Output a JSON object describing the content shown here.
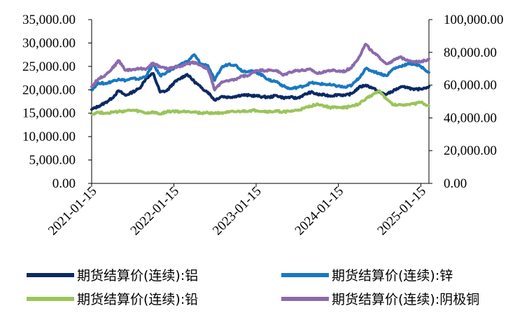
{
  "chart_data": {
    "type": "line",
    "x_axis": {
      "type": "date",
      "range": [
        "2021-01-15",
        "2025-02-20"
      ],
      "tick_labels": [
        "2021-01-15",
        "2022-01-15",
        "2023-01-15",
        "2024-01-15",
        "2025-01-15"
      ],
      "tick_label_rotation": "-45deg"
    },
    "y_left": {
      "range": [
        0,
        35000
      ],
      "tick_labels": [
        "0.00",
        "5,000.00",
        "10,000.00",
        "15,000.00",
        "20,000.00",
        "25,000.00",
        "30,000.00",
        "35,000.00"
      ]
    },
    "y_right": {
      "range": [
        0,
        100000
      ],
      "tick_labels": [
        "0.00",
        "20,000.00",
        "40,000.00",
        "60,000.00",
        "80,000.00",
        "100,000.00"
      ]
    },
    "grid": false,
    "legend_placement": "bottom",
    "series": [
      {
        "name": "期货结算价(连续):铝",
        "axis": "left",
        "color": "#0b2a63",
        "points": [
          [
            "2021-01-15",
            15800
          ],
          [
            "2021-02-15",
            16500
          ],
          [
            "2021-03-15",
            17200
          ],
          [
            "2021-04-15",
            18200
          ],
          [
            "2021-05-15",
            19800
          ],
          [
            "2021-06-15",
            18800
          ],
          [
            "2021-07-15",
            19500
          ],
          [
            "2021-08-15",
            20300
          ],
          [
            "2021-09-15",
            22500
          ],
          [
            "2021-10-15",
            23500
          ],
          [
            "2021-11-15",
            19500
          ],
          [
            "2021-12-15",
            19800
          ],
          [
            "2022-01-15",
            21500
          ],
          [
            "2022-02-15",
            22500
          ],
          [
            "2022-03-15",
            23300
          ],
          [
            "2022-04-15",
            21800
          ],
          [
            "2022-05-15",
            20500
          ],
          [
            "2022-06-15",
            19500
          ],
          [
            "2022-07-15",
            17800
          ],
          [
            "2022-08-15",
            18600
          ],
          [
            "2022-09-15",
            18400
          ],
          [
            "2022-10-15",
            18600
          ],
          [
            "2022-11-15",
            18900
          ],
          [
            "2022-12-15",
            18800
          ],
          [
            "2023-01-15",
            18700
          ],
          [
            "2023-02-15",
            18500
          ],
          [
            "2023-03-15",
            18400
          ],
          [
            "2023-04-15",
            18800
          ],
          [
            "2023-05-15",
            18300
          ],
          [
            "2023-06-15",
            18400
          ],
          [
            "2023-07-15",
            18200
          ],
          [
            "2023-08-15",
            18900
          ],
          [
            "2023-09-15",
            19500
          ],
          [
            "2023-10-15",
            19000
          ],
          [
            "2023-11-15",
            18900
          ],
          [
            "2023-12-15",
            18700
          ],
          [
            "2024-01-15",
            19000
          ],
          [
            "2024-02-15",
            18800
          ],
          [
            "2024-03-15",
            19200
          ],
          [
            "2024-04-15",
            20500
          ],
          [
            "2024-05-15",
            21000
          ],
          [
            "2024-06-15",
            20400
          ],
          [
            "2024-07-15",
            19500
          ],
          [
            "2024-08-15",
            19000
          ],
          [
            "2024-09-15",
            19800
          ],
          [
            "2024-10-15",
            20500
          ],
          [
            "2024-11-15",
            20600
          ],
          [
            "2024-12-15",
            20000
          ],
          [
            "2025-01-15",
            20200
          ],
          [
            "2025-02-20",
            20700
          ]
        ]
      },
      {
        "name": "期货结算价(连续):锌",
        "axis": "left",
        "color": "#1a78c2",
        "points": [
          [
            "2021-01-15",
            20000
          ],
          [
            "2021-02-15",
            21500
          ],
          [
            "2021-03-15",
            21300
          ],
          [
            "2021-04-15",
            21800
          ],
          [
            "2021-05-15",
            22300
          ],
          [
            "2021-06-15",
            22000
          ],
          [
            "2021-07-15",
            22400
          ],
          [
            "2021-08-15",
            22300
          ],
          [
            "2021-09-15",
            23000
          ],
          [
            "2021-10-15",
            25500
          ],
          [
            "2021-11-15",
            23000
          ],
          [
            "2021-12-15",
            23800
          ],
          [
            "2022-01-15",
            24500
          ],
          [
            "2022-02-15",
            25500
          ],
          [
            "2022-03-15",
            26000
          ],
          [
            "2022-04-15",
            27500
          ],
          [
            "2022-05-15",
            25500
          ],
          [
            "2022-06-15",
            25200
          ],
          [
            "2022-07-15",
            22000
          ],
          [
            "2022-08-15",
            24800
          ],
          [
            "2022-09-15",
            25500
          ],
          [
            "2022-10-15",
            25300
          ],
          [
            "2022-11-15",
            24000
          ],
          [
            "2022-12-15",
            24000
          ],
          [
            "2023-01-15",
            23800
          ],
          [
            "2023-02-15",
            23000
          ],
          [
            "2023-03-15",
            22000
          ],
          [
            "2023-04-15",
            21800
          ],
          [
            "2023-05-15",
            20800
          ],
          [
            "2023-06-15",
            20200
          ],
          [
            "2023-07-15",
            20500
          ],
          [
            "2023-08-15",
            20800
          ],
          [
            "2023-09-15",
            21500
          ],
          [
            "2023-10-15",
            21300
          ],
          [
            "2023-11-15",
            21200
          ],
          [
            "2023-12-15",
            21000
          ],
          [
            "2024-01-15",
            20800
          ],
          [
            "2024-02-15",
            20500
          ],
          [
            "2024-03-15",
            21000
          ],
          [
            "2024-04-15",
            22500
          ],
          [
            "2024-05-15",
            24500
          ],
          [
            "2024-06-15",
            24000
          ],
          [
            "2024-07-15",
            23500
          ],
          [
            "2024-08-15",
            23000
          ],
          [
            "2024-09-15",
            24500
          ],
          [
            "2024-10-15",
            25000
          ],
          [
            "2024-11-15",
            25500
          ],
          [
            "2024-12-15",
            25500
          ],
          [
            "2025-01-15",
            25000
          ],
          [
            "2025-02-20",
            23700
          ]
        ]
      },
      {
        "name": "期货结算价(连续):铅",
        "axis": "left",
        "color": "#9bc45a",
        "points": [
          [
            "2021-01-15",
            14800
          ],
          [
            "2021-02-15",
            15200
          ],
          [
            "2021-03-15",
            15000
          ],
          [
            "2021-04-15",
            15200
          ],
          [
            "2021-05-15",
            15300
          ],
          [
            "2021-06-15",
            15500
          ],
          [
            "2021-07-15",
            15600
          ],
          [
            "2021-08-15",
            15400
          ],
          [
            "2021-09-15",
            15000
          ],
          [
            "2021-10-15",
            15200
          ],
          [
            "2021-11-15",
            14800
          ],
          [
            "2021-12-15",
            15300
          ],
          [
            "2022-01-15",
            15400
          ],
          [
            "2022-02-15",
            15300
          ],
          [
            "2022-03-15",
            15400
          ],
          [
            "2022-04-15",
            15300
          ],
          [
            "2022-05-15",
            15000
          ],
          [
            "2022-06-15",
            15100
          ],
          [
            "2022-07-15",
            15000
          ],
          [
            "2022-08-15",
            15100
          ],
          [
            "2022-09-15",
            15200
          ],
          [
            "2022-10-15",
            15300
          ],
          [
            "2022-11-15",
            15400
          ],
          [
            "2022-12-15",
            15500
          ],
          [
            "2023-01-15",
            15600
          ],
          [
            "2023-02-15",
            15400
          ],
          [
            "2023-03-15",
            15300
          ],
          [
            "2023-04-15",
            15400
          ],
          [
            "2023-05-15",
            15300
          ],
          [
            "2023-06-15",
            15400
          ],
          [
            "2023-07-15",
            15600
          ],
          [
            "2023-08-15",
            16000
          ],
          [
            "2023-09-15",
            16500
          ],
          [
            "2023-10-15",
            17000
          ],
          [
            "2023-11-15",
            16500
          ],
          [
            "2023-12-15",
            16200
          ],
          [
            "2024-01-15",
            16300
          ],
          [
            "2024-02-15",
            16200
          ],
          [
            "2024-03-15",
            16500
          ],
          [
            "2024-04-15",
            17000
          ],
          [
            "2024-05-15",
            18000
          ],
          [
            "2024-06-15",
            19000
          ],
          [
            "2024-07-15",
            19800
          ],
          [
            "2024-08-15",
            18000
          ],
          [
            "2024-09-15",
            16800
          ],
          [
            "2024-10-15",
            16800
          ],
          [
            "2024-11-15",
            16900
          ],
          [
            "2024-12-15",
            17000
          ],
          [
            "2025-01-15",
            17300
          ],
          [
            "2025-02-20",
            16600
          ]
        ]
      },
      {
        "name": "期货结算价(连续):阴极铜",
        "axis": "right",
        "color": "#8b6aad",
        "points": [
          [
            "2021-01-15",
            59000
          ],
          [
            "2021-02-15",
            64000
          ],
          [
            "2021-03-15",
            66000
          ],
          [
            "2021-04-15",
            70000
          ],
          [
            "2021-05-15",
            75000
          ],
          [
            "2021-06-15",
            69000
          ],
          [
            "2021-07-15",
            69500
          ],
          [
            "2021-08-15",
            70000
          ],
          [
            "2021-09-15",
            70000
          ],
          [
            "2021-10-15",
            73500
          ],
          [
            "2021-11-15",
            71000
          ],
          [
            "2021-12-15",
            70000
          ],
          [
            "2022-01-15",
            71000
          ],
          [
            "2022-02-15",
            71500
          ],
          [
            "2022-03-15",
            73000
          ],
          [
            "2022-04-15",
            74000
          ],
          [
            "2022-05-15",
            72000
          ],
          [
            "2022-06-15",
            70000
          ],
          [
            "2022-07-15",
            57000
          ],
          [
            "2022-08-15",
            62000
          ],
          [
            "2022-09-15",
            62500
          ],
          [
            "2022-10-15",
            63500
          ],
          [
            "2022-11-15",
            65500
          ],
          [
            "2022-12-15",
            66000
          ],
          [
            "2023-01-15",
            69000
          ],
          [
            "2023-02-15",
            69000
          ],
          [
            "2023-03-15",
            69000
          ],
          [
            "2023-04-15",
            69000
          ],
          [
            "2023-05-15",
            66000
          ],
          [
            "2023-06-15",
            68000
          ],
          [
            "2023-07-15",
            69000
          ],
          [
            "2023-08-15",
            69000
          ],
          [
            "2023-09-15",
            69500
          ],
          [
            "2023-10-15",
            67000
          ],
          [
            "2023-11-15",
            68500
          ],
          [
            "2023-12-15",
            69000
          ],
          [
            "2024-01-15",
            68500
          ],
          [
            "2024-02-15",
            68500
          ],
          [
            "2024-03-15",
            71000
          ],
          [
            "2024-04-15",
            77000
          ],
          [
            "2024-05-15",
            85000
          ],
          [
            "2024-06-15",
            80000
          ],
          [
            "2024-07-15",
            77000
          ],
          [
            "2024-08-15",
            73000
          ],
          [
            "2024-09-15",
            75000
          ],
          [
            "2024-10-15",
            77000
          ],
          [
            "2024-11-15",
            75500
          ],
          [
            "2024-12-15",
            74500
          ],
          [
            "2025-01-15",
            74000
          ],
          [
            "2025-02-20",
            76000
          ]
        ]
      }
    ]
  }
}
